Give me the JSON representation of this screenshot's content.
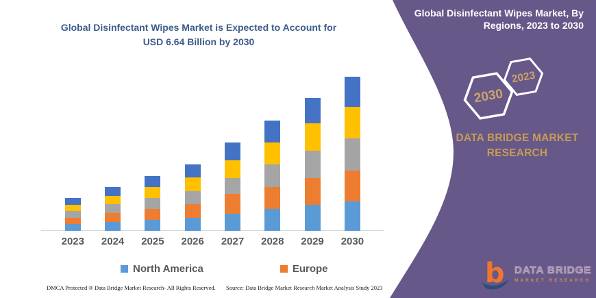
{
  "left_panel": {
    "title_line1": "Global Disinfectant Wipes Market is Expected to Account for",
    "title_line2": "USD 6.64 Billion by 2030",
    "footer_left": "DMCA Protected ® Data Bridge Market Research-  All Rights Reserved.",
    "footer_right": "Source: Data Bridge Market Research Market Analysis Study 2023"
  },
  "chart_data": {
    "type": "bar",
    "stacked": true,
    "title": "Global Disinfectant Wipes Market is Expected to Account for USD 6.64 Billion by 2030",
    "unit": "USD Billion",
    "categories": [
      "2023",
      "2024",
      "2025",
      "2026",
      "2027",
      "2028",
      "2029",
      "2030"
    ],
    "totals": [
      1.42,
      1.89,
      2.36,
      2.86,
      3.81,
      4.75,
      5.73,
      6.64
    ],
    "series": [
      {
        "name": "North America",
        "color": "#5B9BD5",
        "values": [
          0.29,
          0.38,
          0.47,
          0.57,
          0.74,
          0.95,
          1.12,
          1.28
        ]
      },
      {
        "name": "Europe",
        "color": "#ED7D31",
        "values": [
          0.28,
          0.38,
          0.47,
          0.57,
          0.84,
          0.95,
          1.15,
          1.31
        ]
      },
      {
        "name": "Unlabeled (gray)",
        "color": "#A5A5A5",
        "values": [
          0.28,
          0.38,
          0.47,
          0.58,
          0.69,
          0.95,
          1.18,
          1.4
        ]
      },
      {
        "name": "Unlabeled (yellow)",
        "color": "#FFC000",
        "values": [
          0.28,
          0.37,
          0.47,
          0.57,
          0.77,
          0.95,
          1.18,
          1.34
        ]
      },
      {
        "name": "Unlabeled (dark blue)",
        "color": "#4472C4",
        "values": [
          0.29,
          0.38,
          0.48,
          0.57,
          0.77,
          0.95,
          1.1,
          1.31
        ]
      }
    ],
    "legend": [
      "North America",
      "Europe"
    ],
    "legend_position": "bottom",
    "grid": false,
    "y_axis_shown": false,
    "ylim": [
      0,
      6.64
    ]
  },
  "right_panel": {
    "title_line1": "Global Disinfectant Wipes Market, By",
    "title_line2": "Regions, 2023 to 2030",
    "hexagon_front_year": "2023",
    "hexagon_back_year": "2030",
    "brand_line1": "DATA BRIDGE MARKET",
    "brand_line2": "RESEARCH",
    "logo_letter": "b",
    "logo_name": "DATA BRIDGE",
    "logo_subtitle": "MARKET RESEARCH"
  },
  "colors": {
    "title_text": "#3E5D8C",
    "panel_background": "#665889",
    "panel_title_text": "#FFFFFF",
    "brand_gold": "#C79B55",
    "hexagon_year_gold": "#CBA36A",
    "hexagon_outline": "#FFFFFF",
    "axis_line": "#D9D9D9",
    "axis_label": "#595959",
    "logo_orange": "#F0752F",
    "logo_navy": "#2F4B7C"
  }
}
